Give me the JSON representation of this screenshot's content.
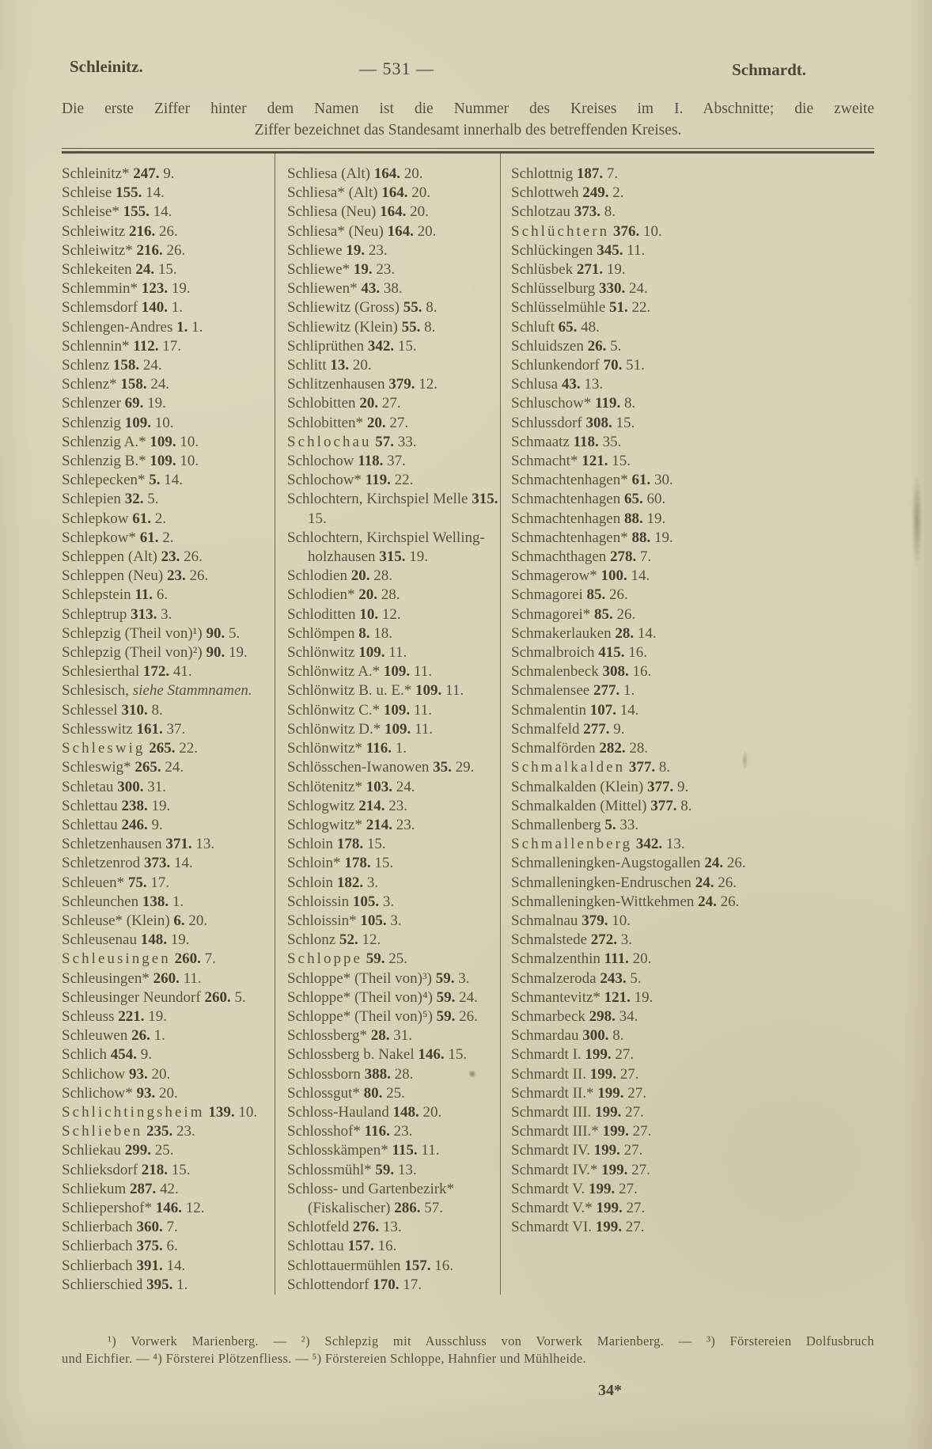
{
  "page": {
    "header": {
      "left": "Schleinitz.",
      "center": "— 531 —",
      "right": "Schmardt."
    },
    "intro_line1": "Die erste Ziffer hinter dem Namen ist die Nummer des Kreises im I. Abschnitte; die zweite",
    "intro_line2": "Ziffer bezeichnet das Standesamt innerhalb des betreffenden Kreises.",
    "footnote_line1": "¹) Vorwerk Marienberg. — ²) Schlepzig mit Ausschluss von Vorwerk Marienberg. — ³) Förstereien Dolfusbruch",
    "footnote_line2": "und Eichfier. — ⁴) Försterei Plötzenfliess. — ⁵) Förstereien Schloppe, Hahnfier und Mühlheide.",
    "page_signature": "34*",
    "paper_color": "#d9d2b6",
    "ink_color": "#544d42"
  },
  "columns": [
    {
      "entries": [
        {
          "name": "Schleinitz*",
          "k": "247",
          "s": "9"
        },
        {
          "name": "Schleise",
          "k": "155",
          "s": "14"
        },
        {
          "name": "Schleise*",
          "k": "155",
          "s": "14"
        },
        {
          "name": "Schleiwitz",
          "k": "216",
          "s": "26"
        },
        {
          "name": "Schleiwitz*",
          "k": "216",
          "s": "26"
        },
        {
          "name": "Schlekeiten",
          "k": "24",
          "s": "15"
        },
        {
          "name": "Schlemmin*",
          "k": "123",
          "s": "19"
        },
        {
          "name": "Schlemsdorf",
          "k": "140",
          "s": "1"
        },
        {
          "name": "Schlengen-Andres",
          "k": "1",
          "s": "1"
        },
        {
          "name": "Schlennin*",
          "k": "112",
          "s": "17"
        },
        {
          "name": "Schlenz",
          "k": "158",
          "s": "24"
        },
        {
          "name": "Schlenz*",
          "k": "158",
          "s": "24"
        },
        {
          "name": "Schlenzer",
          "k": "69",
          "s": "19"
        },
        {
          "name": "Schlenzig",
          "k": "109",
          "s": "10"
        },
        {
          "name": "Schlenzig A.*",
          "k": "109",
          "s": "10"
        },
        {
          "name": "Schlenzig B.*",
          "k": "109",
          "s": "10"
        },
        {
          "name": "Schlepecken*",
          "k": "5",
          "s": "14"
        },
        {
          "name": "Schlepien",
          "k": "32",
          "s": "5"
        },
        {
          "name": "Schlepkow",
          "k": "61",
          "s": "2"
        },
        {
          "name": "Schlepkow*",
          "k": "61",
          "s": "2"
        },
        {
          "name": "Schleppen (Alt)",
          "k": "23",
          "s": "26"
        },
        {
          "name": "Schleppen (Neu)",
          "k": "23",
          "s": "26"
        },
        {
          "name": "Schlepstein",
          "k": "11",
          "s": "6"
        },
        {
          "name": "Schleptrup",
          "k": "313",
          "s": "3"
        },
        {
          "name": "Schlepzig (Theil von)¹)",
          "k": "90",
          "s": "5"
        },
        {
          "name": "Schlepzig (Theil von)²)",
          "k": "90",
          "s": "19"
        },
        {
          "name": "Schlesierthal",
          "k": "172",
          "s": "41"
        },
        {
          "name": "Schlesisch,",
          "see": "siehe Stammnamen."
        },
        {
          "name": "Schlessel",
          "k": "310",
          "s": "8"
        },
        {
          "name": "Schlesswitz",
          "k": "161",
          "s": "37"
        },
        {
          "name": "Schleswig",
          "k": "265",
          "s": "22",
          "spaced": true
        },
        {
          "name": "Schleswig*",
          "k": "265",
          "s": "24"
        },
        {
          "name": "Schletau",
          "k": "300",
          "s": "31"
        },
        {
          "name": "Schlettau",
          "k": "238",
          "s": "19"
        },
        {
          "name": "Schlettau",
          "k": "246",
          "s": "9"
        },
        {
          "name": "Schletzenhausen",
          "k": "371",
          "s": "13"
        },
        {
          "name": "Schletzenrod",
          "k": "373",
          "s": "14"
        },
        {
          "name": "Schleuen*",
          "k": "75",
          "s": "17"
        },
        {
          "name": "Schleunchen",
          "k": "138",
          "s": "1"
        },
        {
          "name": "Schleuse* (Klein)",
          "k": "6",
          "s": "20"
        },
        {
          "name": "Schleusenau",
          "k": "148",
          "s": "19"
        },
        {
          "name": "Schleusingen",
          "k": "260",
          "s": "7",
          "spaced": true
        },
        {
          "name": "Schleusingen*",
          "k": "260",
          "s": "11"
        },
        {
          "name": "Schleusinger Neundorf",
          "k": "260",
          "s": "5"
        },
        {
          "name": "Schleuss",
          "k": "221",
          "s": "19"
        },
        {
          "name": "Schleuwen",
          "k": "26",
          "s": "1"
        },
        {
          "name": "Schlich",
          "k": "454",
          "s": "9"
        },
        {
          "name": "Schlichow",
          "k": "93",
          "s": "20"
        },
        {
          "name": "Schlichow*",
          "k": "93",
          "s": "20"
        },
        {
          "name": "Schlichtingsheim",
          "k": "139",
          "s": "10",
          "spaced": true
        },
        {
          "name": "Schlieben",
          "k": "235",
          "s": "23",
          "spaced": true
        },
        {
          "name": "Schliekau",
          "k": "299",
          "s": "25"
        },
        {
          "name": "Schlieksdorf",
          "k": "218",
          "s": "15"
        },
        {
          "name": "Schliekum",
          "k": "287",
          "s": "42"
        },
        {
          "name": "Schliepershof*",
          "k": "146",
          "s": "12"
        },
        {
          "name": "Schlierbach",
          "k": "360",
          "s": "7"
        },
        {
          "name": "Schlierbach",
          "k": "375",
          "s": "6"
        },
        {
          "name": "Schlierbach",
          "k": "391",
          "s": "14"
        },
        {
          "name": "Schlierschied",
          "k": "395",
          "s": "1"
        }
      ]
    },
    {
      "entries": [
        {
          "name": "Schliesa (Alt)",
          "k": "164",
          "s": "20"
        },
        {
          "name": "Schliesa* (Alt)",
          "k": "164",
          "s": "20"
        },
        {
          "name": "Schliesa (Neu)",
          "k": "164",
          "s": "20"
        },
        {
          "name": "Schliesa* (Neu)",
          "k": "164",
          "s": "20"
        },
        {
          "name": "Schliewe",
          "k": "19",
          "s": "23"
        },
        {
          "name": "Schliewe*",
          "k": "19",
          "s": "23"
        },
        {
          "name": "Schliewen*",
          "k": "43",
          "s": "38"
        },
        {
          "name": "Schliewitz (Gross)",
          "k": "55",
          "s": "8"
        },
        {
          "name": "Schliewitz (Klein)",
          "k": "55",
          "s": "8"
        },
        {
          "name": "Schliprüthen",
          "k": "342",
          "s": "15"
        },
        {
          "name": "Schlitt",
          "k": "13",
          "s": "20"
        },
        {
          "name": "Schlitzenhausen",
          "k": "379",
          "s": "12"
        },
        {
          "name": "Schlobitten",
          "k": "20",
          "s": "27"
        },
        {
          "name": "Schlobitten*",
          "k": "20",
          "s": "27"
        },
        {
          "name": "Schlochau",
          "k": "57",
          "s": "33",
          "spaced": true
        },
        {
          "name": "Schlochow",
          "k": "118",
          "s": "37"
        },
        {
          "name": "Schlochow*",
          "k": "119",
          "s": "22"
        },
        {
          "name": "Schlochtern, Kirchspiel Melle",
          "k": "315",
          "s": "15"
        },
        {
          "name": "Schlochtern, Kirchspiel Welling­holzhausen",
          "k": "315",
          "s": "19"
        },
        {
          "name": "Schlodien",
          "k": "20",
          "s": "28"
        },
        {
          "name": "Schlodien*",
          "k": "20",
          "s": "28"
        },
        {
          "name": "Schloditten",
          "k": "10",
          "s": "12"
        },
        {
          "name": "Schlömpen",
          "k": "8",
          "s": "18"
        },
        {
          "name": "Schlönwitz",
          "k": "109",
          "s": "11"
        },
        {
          "name": "Schlönwitz A.*",
          "k": "109",
          "s": "11"
        },
        {
          "name": "Schlönwitz B. u. E.*",
          "k": "109",
          "s": "11"
        },
        {
          "name": "Schlönwitz C.*",
          "k": "109",
          "s": "11"
        },
        {
          "name": "Schlönwitz D.*",
          "k": "109",
          "s": "11"
        },
        {
          "name": "Schlönwitz*",
          "k": "116",
          "s": "1"
        },
        {
          "name": "Schlösschen-Iwanowen",
          "k": "35",
          "s": "29"
        },
        {
          "name": "Schlötenitz*",
          "k": "103",
          "s": "24"
        },
        {
          "name": "Schlogwitz",
          "k": "214",
          "s": "23"
        },
        {
          "name": "Schlogwitz*",
          "k": "214",
          "s": "23"
        },
        {
          "name": "Schloin",
          "k": "178",
          "s": "15"
        },
        {
          "name": "Schloin*",
          "k": "178",
          "s": "15"
        },
        {
          "name": "Schloin",
          "k": "182",
          "s": "3"
        },
        {
          "name": "Schloissin",
          "k": "105",
          "s": "3"
        },
        {
          "name": "Schloissin*",
          "k": "105",
          "s": "3"
        },
        {
          "name": "Schlonz",
          "k": "52",
          "s": "12"
        },
        {
          "name": "Schloppe",
          "k": "59",
          "s": "25",
          "spaced": true
        },
        {
          "name": "Schloppe* (Theil von)³)",
          "k": "59",
          "s": "3"
        },
        {
          "name": "Schloppe* (Theil von)⁴)",
          "k": "59",
          "s": "24"
        },
        {
          "name": "Schloppe* (Theil von)⁵)",
          "k": "59",
          "s": "26"
        },
        {
          "name": "Schlossberg*",
          "k": "28",
          "s": "31"
        },
        {
          "name": "Schlossberg b. Nakel",
          "k": "146",
          "s": "15"
        },
        {
          "name": "Schlossborn",
          "k": "388",
          "s": "28"
        },
        {
          "name": "Schlossgut*",
          "k": "80",
          "s": "25"
        },
        {
          "name": "Schloss-Hauland",
          "k": "148",
          "s": "20"
        },
        {
          "name": "Schlosshof*",
          "k": "116",
          "s": "23"
        },
        {
          "name": "Schlosskämpen*",
          "k": "115",
          "s": "11"
        },
        {
          "name": "Schlossmühl*",
          "k": "59",
          "s": "13"
        },
        {
          "name": "Schloss- und Gartenbezirk* (Fiskalischer)",
          "k": "286",
          "s": "57"
        },
        {
          "name": "Schlotfeld",
          "k": "276",
          "s": "13"
        },
        {
          "name": "Schlottau",
          "k": "157",
          "s": "16"
        },
        {
          "name": "Schlottauermühlen",
          "k": "157",
          "s": "16"
        },
        {
          "name": "Schlottendorf",
          "k": "170",
          "s": "17"
        }
      ]
    },
    {
      "entries": [
        {
          "name": "Schlottnig",
          "k": "187",
          "s": "7"
        },
        {
          "name": "Schlottweh",
          "k": "249",
          "s": "2"
        },
        {
          "name": "Schlotzau",
          "k": "373",
          "s": "8"
        },
        {
          "name": "Schlüchtern",
          "k": "376",
          "s": "10",
          "spaced": true
        },
        {
          "name": "Schlückingen",
          "k": "345",
          "s": "11"
        },
        {
          "name": "Schlüsbek",
          "k": "271",
          "s": "19"
        },
        {
          "name": "Schlüsselburg",
          "k": "330",
          "s": "24"
        },
        {
          "name": "Schlüsselmühle",
          "k": "51",
          "s": "22"
        },
        {
          "name": "Schluft",
          "k": "65",
          "s": "48"
        },
        {
          "name": "Schluidszen",
          "k": "26",
          "s": "5"
        },
        {
          "name": "Schlunkendorf",
          "k": "70",
          "s": "51"
        },
        {
          "name": "Schlusa",
          "k": "43",
          "s": "13"
        },
        {
          "name": "Schluschow*",
          "k": "119",
          "s": "8"
        },
        {
          "name": "Schlussdorf",
          "k": "308",
          "s": "15"
        },
        {
          "name": "Schmaatz",
          "k": "118",
          "s": "35"
        },
        {
          "name": "Schmacht*",
          "k": "121",
          "s": "15"
        },
        {
          "name": "Schmachtenhagen*",
          "k": "61",
          "s": "30"
        },
        {
          "name": "Schmachtenhagen",
          "k": "65",
          "s": "60"
        },
        {
          "name": "Schmachtenhagen",
          "k": "88",
          "s": "19"
        },
        {
          "name": "Schmachtenhagen*",
          "k": "88",
          "s": "19"
        },
        {
          "name": "Schmachthagen",
          "k": "278",
          "s": "7"
        },
        {
          "name": "Schmagerow*",
          "k": "100",
          "s": "14"
        },
        {
          "name": "Schmagorei",
          "k": "85",
          "s": "26"
        },
        {
          "name": "Schmagorei*",
          "k": "85",
          "s": "26"
        },
        {
          "name": "Schmakerlauken",
          "k": "28",
          "s": "14"
        },
        {
          "name": "Schmalbroich",
          "k": "415",
          "s": "16"
        },
        {
          "name": "Schmalenbeck",
          "k": "308",
          "s": "16"
        },
        {
          "name": "Schmalensee",
          "k": "277",
          "s": "1"
        },
        {
          "name": "Schmalentin",
          "k": "107",
          "s": "14"
        },
        {
          "name": "Schmalfeld",
          "k": "277",
          "s": "9"
        },
        {
          "name": "Schmalförden",
          "k": "282",
          "s": "28"
        },
        {
          "name": "Schmalkalden",
          "k": "377",
          "s": "8",
          "spaced": true
        },
        {
          "name": "Schmalkalden (Klein)",
          "k": "377",
          "s": "9"
        },
        {
          "name": "Schmalkalden (Mittel)",
          "k": "377",
          "s": "8"
        },
        {
          "name": "Schmallenberg",
          "k": "5",
          "s": "33"
        },
        {
          "name": "Schmallenberg",
          "k": "342",
          "s": "13",
          "spaced": true
        },
        {
          "name": "Schmalleningken-Augstogallen",
          "k": "24",
          "s": "26"
        },
        {
          "name": "Schmalleningken-Endruschen",
          "k": "24",
          "s": "26"
        },
        {
          "name": "Schmalleningken-Wittkehmen",
          "k": "24",
          "s": "26"
        },
        {
          "name": "Schmalnau",
          "k": "379",
          "s": "10"
        },
        {
          "name": "Schmalstede",
          "k": "272",
          "s": "3"
        },
        {
          "name": "Schmalzenthin",
          "k": "111",
          "s": "20"
        },
        {
          "name": "Schmalzeroda",
          "k": "243",
          "s": "5"
        },
        {
          "name": "Schmantevitz*",
          "k": "121",
          "s": "19"
        },
        {
          "name": "Schmarbeck",
          "k": "298",
          "s": "34"
        },
        {
          "name": "Schmardau",
          "k": "300",
          "s": "8"
        },
        {
          "name": "Schmardt I.",
          "k": "199",
          "s": "27"
        },
        {
          "name": "Schmardt II.",
          "k": "199",
          "s": "27"
        },
        {
          "name": "Schmardt II.*",
          "k": "199",
          "s": "27"
        },
        {
          "name": "Schmardt III.",
          "k": "199",
          "s": "27"
        },
        {
          "name": "Schmardt III.*",
          "k": "199",
          "s": "27"
        },
        {
          "name": "Schmardt IV.",
          "k": "199",
          "s": "27"
        },
        {
          "name": "Schmardt IV.*",
          "k": "199",
          "s": "27"
        },
        {
          "name": "Schmardt V.",
          "k": "199",
          "s": "27"
        },
        {
          "name": "Schmardt V.*",
          "k": "199",
          "s": "27"
        },
        {
          "name": "Schmardt VI.",
          "k": "199",
          "s": "27"
        }
      ]
    }
  ]
}
